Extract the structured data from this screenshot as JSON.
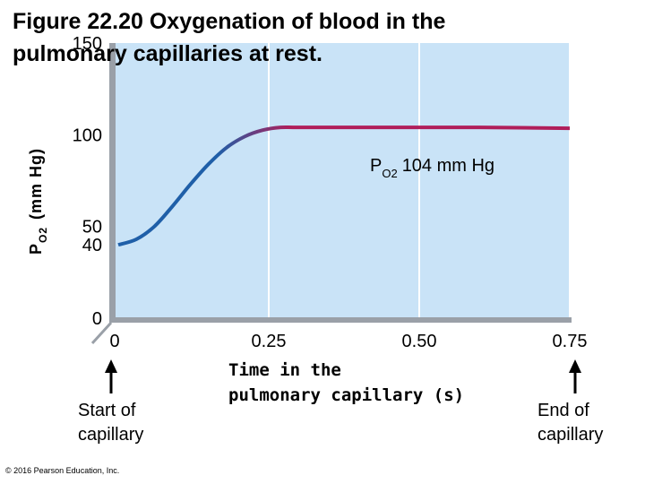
{
  "title_line1": "Figure 22.20 Oxygenation of blood in the",
  "title_line2": "pulmonary capillaries at rest.",
  "copyright": "© 2016 Pearson Education, Inc.",
  "colors": {
    "plot_bg": "#c9e3f7",
    "curve_start": "#1f5fa8",
    "curve_end": "#b01e5a",
    "axis": "#9aa0a8"
  },
  "chart_data": {
    "type": "line",
    "title": "Figure 22.20 Oxygenation of blood in the pulmonary capillaries at rest.",
    "ylabel": {
      "main": "P",
      "sub": "O2",
      "rest": "(mm Hg)"
    },
    "xlabel_line1": "Time in the",
    "xlabel_line2": "pulmonary capillary (s)",
    "xlim": [
      0,
      0.75
    ],
    "ylim": [
      0,
      150
    ],
    "xticks": [
      "0",
      "0.25",
      "0.50",
      "0.75"
    ],
    "xtick_values": [
      0,
      0.25,
      0.5,
      0.75
    ],
    "yticks": [
      "0",
      "40",
      "50",
      "100",
      "150"
    ],
    "ytick_values": [
      0,
      40,
      50,
      100,
      150
    ],
    "grid": true,
    "annotation": {
      "main": "P",
      "sub": "O2",
      "rest": "104 mm Hg"
    },
    "markers": [
      {
        "x": 0,
        "label_line1": "Start of",
        "label_line2": "capillary"
      },
      {
        "x": 0.75,
        "label_line1": "End of",
        "label_line2": "capillary"
      }
    ],
    "series": [
      {
        "x": [
          0,
          0.03,
          0.06,
          0.09,
          0.12,
          0.15,
          0.18,
          0.21,
          0.24,
          0.27,
          0.3,
          0.4,
          0.5,
          0.6,
          0.75
        ],
        "y": [
          40,
          43,
          50,
          61,
          73,
          84,
          93,
          99,
          102.5,
          104,
          104,
          104,
          104,
          104,
          103.5
        ]
      }
    ]
  }
}
